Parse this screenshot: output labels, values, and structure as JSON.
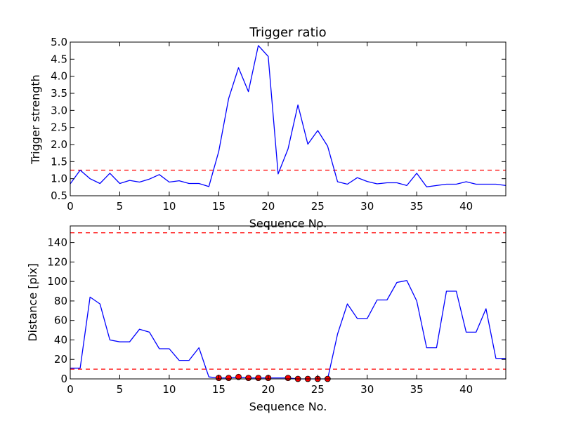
{
  "figure": {
    "background": "#ffffff"
  },
  "chart_data": [
    {
      "type": "line",
      "title": "Trigger ratio",
      "xlabel": "Sequence No.",
      "ylabel": "Trigger strength",
      "xlim": [
        0,
        44
      ],
      "ylim": [
        0.5,
        5.0
      ],
      "xticks": [
        0,
        5,
        10,
        15,
        20,
        25,
        30,
        35,
        40
      ],
      "xtick_labels": [
        "0",
        "5",
        "10",
        "15",
        "20",
        "25",
        "30",
        "35",
        "40"
      ],
      "yticks": [
        0.5,
        1.0,
        1.5,
        2.0,
        2.5,
        3.0,
        3.5,
        4.0,
        4.5,
        5.0
      ],
      "ytick_labels": [
        "0.5",
        "1.0",
        "1.5",
        "2.0",
        "2.5",
        "3.0",
        "3.5",
        "4.0",
        "4.5",
        "5.0"
      ],
      "grid": false,
      "series": [
        {
          "color": "#0000ff",
          "x": [
            0,
            1,
            2,
            3,
            4,
            5,
            6,
            7,
            8,
            9,
            10,
            11,
            12,
            13,
            14,
            15,
            16,
            17,
            18,
            19,
            20,
            21,
            22,
            23,
            24,
            25,
            26,
            27,
            28,
            29,
            30,
            31,
            32,
            33,
            34,
            35,
            36,
            37,
            38,
            39,
            40,
            41,
            42,
            43,
            44
          ],
          "y": [
            0.85,
            1.25,
            1.0,
            0.86,
            1.16,
            0.86,
            0.95,
            0.9,
            0.99,
            1.12,
            0.9,
            0.94,
            0.86,
            0.86,
            0.77,
            1.8,
            3.35,
            4.25,
            3.55,
            4.9,
            4.58,
            1.14,
            1.87,
            3.16,
            2.01,
            2.41,
            1.95,
            0.91,
            0.84,
            1.03,
            0.92,
            0.85,
            0.88,
            0.88,
            0.8,
            1.16,
            0.76,
            0.8,
            0.84,
            0.84,
            0.91,
            0.84,
            0.84,
            0.84,
            0.8
          ]
        }
      ],
      "reference_lines": [
        {
          "axis": "y",
          "value": 1.25,
          "color": "#ff0000",
          "style": "dashed"
        }
      ]
    },
    {
      "type": "line",
      "title": "",
      "xlabel": "Sequence No.",
      "ylabel": "Distance [pix]",
      "xlim": [
        0,
        44
      ],
      "ylim": [
        0,
        157
      ],
      "xticks": [
        0,
        5,
        10,
        15,
        20,
        25,
        30,
        35,
        40
      ],
      "xtick_labels": [
        "0",
        "5",
        "10",
        "15",
        "20",
        "25",
        "30",
        "35",
        "40"
      ],
      "yticks": [
        0,
        20,
        40,
        60,
        80,
        100,
        120,
        140
      ],
      "ytick_labels": [
        "0",
        "20",
        "40",
        "60",
        "80",
        "100",
        "120",
        "140"
      ],
      "grid": false,
      "series": [
        {
          "color": "#0000ff",
          "x": [
            0,
            1,
            2,
            3,
            4,
            5,
            6,
            7,
            8,
            9,
            10,
            11,
            12,
            13,
            14,
            15,
            16,
            17,
            18,
            19,
            20,
            21,
            22,
            23,
            24,
            25,
            26,
            27,
            28,
            29,
            30,
            31,
            32,
            33,
            34,
            35,
            36,
            37,
            38,
            39,
            40,
            41,
            42,
            43,
            44
          ],
          "y": [
            11,
            11,
            84,
            77,
            40,
            38,
            38,
            51,
            48,
            31,
            31,
            19,
            19,
            32,
            2,
            1,
            1,
            2,
            1,
            1,
            1,
            1,
            1,
            0,
            0,
            0,
            0,
            46,
            77,
            62,
            62,
            81,
            81,
            99,
            101,
            80,
            32,
            32,
            90,
            90,
            48,
            48,
            72,
            21,
            21
          ]
        }
      ],
      "markers": {
        "color": "#ff0000",
        "edge_color": "#000000",
        "x": [
          15,
          16,
          17,
          18,
          19,
          20,
          22,
          23,
          24,
          25,
          26
        ],
        "y": [
          1,
          1,
          2,
          1,
          1,
          1,
          1,
          0,
          0,
          0,
          0
        ]
      },
      "reference_lines": [
        {
          "axis": "y",
          "value": 10,
          "color": "#ff0000",
          "style": "dashed"
        },
        {
          "axis": "y",
          "value": 150,
          "color": "#ff0000",
          "style": "dashed"
        }
      ]
    }
  ]
}
